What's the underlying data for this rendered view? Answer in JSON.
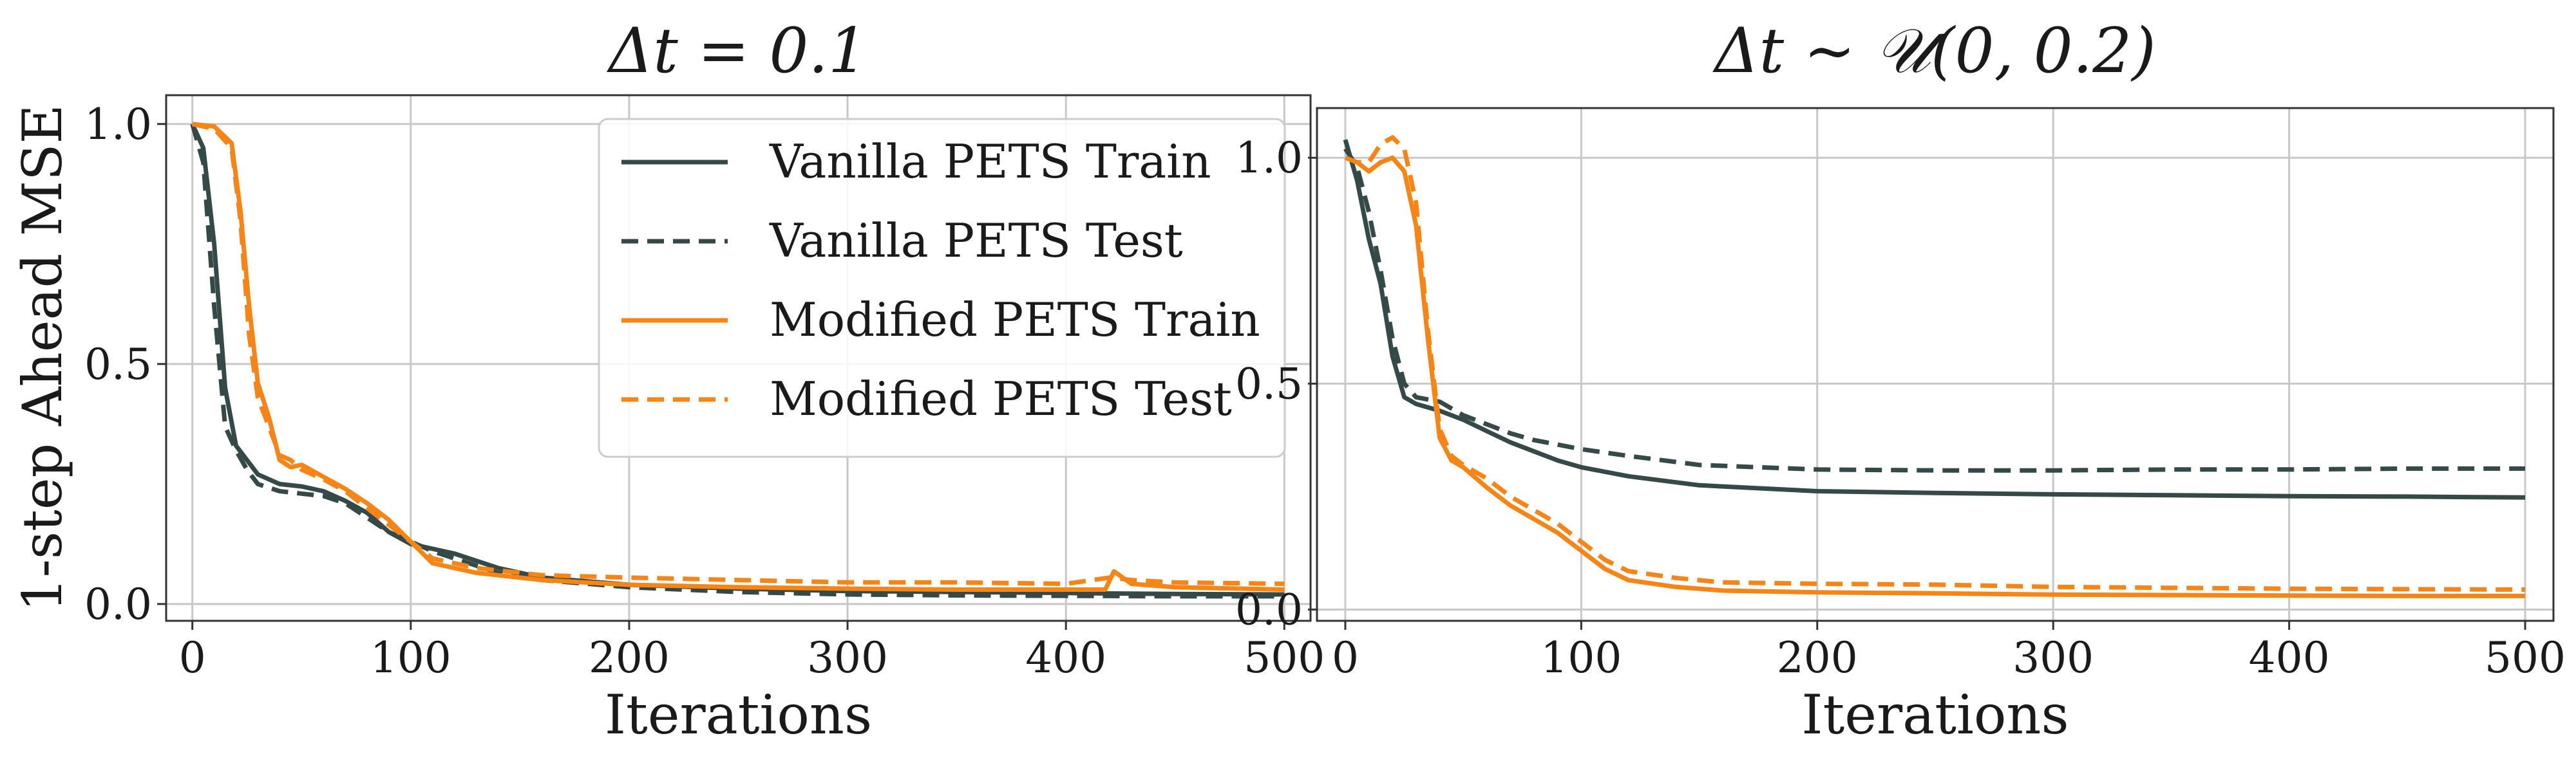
{
  "figure": {
    "ylabel": "1-step Ahead MSE"
  },
  "colors": {
    "vanilla": "#354a48",
    "modified": "#f58516",
    "grid": "#c8c8c8"
  },
  "chart_data": [
    {
      "type": "line",
      "title": "Δt = 0.1",
      "xlabel": "Iterations",
      "ylabel": "1-step Ahead MSE",
      "xlim": [
        -12,
        512
      ],
      "ylim": [
        -0.035,
        1.06
      ],
      "xticks": [
        0,
        100,
        200,
        300,
        400,
        500
      ],
      "yticks": [
        0.0,
        0.5,
        1.0
      ],
      "ytick_labels": [
        "0.0",
        "0.5",
        "1.0"
      ],
      "grid": true,
      "legend": {
        "position": "top-right",
        "entries": [
          {
            "label": "Vanilla PETS Train",
            "color": "vanilla",
            "style": "solid"
          },
          {
            "label": "Vanilla PETS Test",
            "color": "vanilla",
            "style": "dashed"
          },
          {
            "label": "Modified PETS Train",
            "color": "modified",
            "style": "solid"
          },
          {
            "label": "Modified PETS Test",
            "color": "modified",
            "style": "dashed"
          }
        ]
      },
      "series": [
        {
          "name": "Vanilla PETS Train",
          "color": "vanilla",
          "style": "solid",
          "x": [
            0,
            5,
            10,
            15,
            20,
            25,
            30,
            40,
            50,
            60,
            70,
            80,
            90,
            100,
            110,
            120,
            140,
            160,
            200,
            250,
            300,
            350,
            400,
            420,
            450,
            500
          ],
          "y": [
            1.0,
            0.95,
            0.75,
            0.45,
            0.33,
            0.3,
            0.27,
            0.25,
            0.245,
            0.235,
            0.215,
            0.19,
            0.15,
            0.125,
            0.115,
            0.105,
            0.075,
            0.055,
            0.04,
            0.032,
            0.027,
            0.025,
            0.023,
            0.022,
            0.021,
            0.02
          ]
        },
        {
          "name": "Vanilla PETS Test",
          "color": "vanilla",
          "style": "dashed",
          "x": [
            0,
            5,
            10,
            15,
            20,
            25,
            30,
            40,
            50,
            60,
            70,
            80,
            90,
            100,
            110,
            120,
            140,
            160,
            200,
            250,
            300,
            350,
            400,
            450,
            500
          ],
          "y": [
            1.0,
            0.92,
            0.62,
            0.37,
            0.32,
            0.28,
            0.25,
            0.235,
            0.23,
            0.225,
            0.21,
            0.18,
            0.15,
            0.13,
            0.11,
            0.095,
            0.065,
            0.05,
            0.035,
            0.025,
            0.02,
            0.018,
            0.017,
            0.016,
            0.016
          ]
        },
        {
          "name": "Modified PETS Train",
          "color": "modified",
          "style": "solid",
          "x": [
            0,
            10,
            18,
            22,
            26,
            30,
            35,
            40,
            45,
            50,
            60,
            70,
            80,
            90,
            100,
            110,
            130,
            160,
            200,
            250,
            300,
            350,
            400,
            418,
            422,
            430,
            450,
            500
          ],
          "y": [
            1.0,
            0.995,
            0.96,
            0.82,
            0.62,
            0.46,
            0.39,
            0.3,
            0.285,
            0.29,
            0.265,
            0.24,
            0.21,
            0.175,
            0.13,
            0.085,
            0.065,
            0.05,
            0.04,
            0.035,
            0.032,
            0.03,
            0.03,
            0.03,
            0.068,
            0.042,
            0.035,
            0.03
          ]
        },
        {
          "name": "Modified PETS Test",
          "color": "modified",
          "style": "dashed",
          "x": [
            0,
            10,
            18,
            22,
            26,
            30,
            35,
            40,
            45,
            50,
            60,
            70,
            80,
            90,
            100,
            110,
            130,
            160,
            200,
            250,
            300,
            350,
            400,
            420,
            430,
            450,
            500
          ],
          "y": [
            1.0,
            0.99,
            0.95,
            0.8,
            0.56,
            0.43,
            0.37,
            0.31,
            0.3,
            0.28,
            0.26,
            0.235,
            0.2,
            0.165,
            0.13,
            0.095,
            0.075,
            0.06,
            0.055,
            0.05,
            0.045,
            0.045,
            0.042,
            0.055,
            0.05,
            0.045,
            0.042
          ]
        }
      ]
    },
    {
      "type": "line",
      "title": "Δt ∼ 𝒰(0, 0.2)",
      "xlabel": "Iterations",
      "ylabel": "",
      "xlim": [
        -12,
        512
      ],
      "ylim": [
        -0.025,
        1.11
      ],
      "xticks": [
        0,
        100,
        200,
        300,
        400,
        500
      ],
      "yticks": [
        0.0,
        0.5,
        1.0
      ],
      "ytick_labels": [
        "0.0",
        "0.5",
        "1.0"
      ],
      "grid": true,
      "series": [
        {
          "name": "Vanilla PETS Train",
          "color": "vanilla",
          "style": "solid",
          "x": [
            0,
            5,
            10,
            15,
            20,
            25,
            30,
            40,
            50,
            60,
            70,
            80,
            90,
            100,
            120,
            150,
            200,
            250,
            300,
            350,
            400,
            450,
            500
          ],
          "y": [
            1.04,
            0.95,
            0.82,
            0.72,
            0.56,
            0.47,
            0.455,
            0.44,
            0.42,
            0.395,
            0.37,
            0.35,
            0.33,
            0.315,
            0.295,
            0.275,
            0.262,
            0.258,
            0.255,
            0.253,
            0.251,
            0.25,
            0.248
          ]
        },
        {
          "name": "Vanilla PETS Test",
          "color": "vanilla",
          "style": "dashed",
          "x": [
            0,
            5,
            10,
            15,
            20,
            25,
            30,
            40,
            50,
            60,
            70,
            80,
            90,
            100,
            120,
            150,
            200,
            250,
            300,
            350,
            400,
            450,
            500
          ],
          "y": [
            1.02,
            0.98,
            0.88,
            0.75,
            0.6,
            0.5,
            0.47,
            0.46,
            0.43,
            0.41,
            0.39,
            0.375,
            0.365,
            0.355,
            0.34,
            0.32,
            0.31,
            0.308,
            0.308,
            0.31,
            0.31,
            0.312,
            0.312
          ]
        },
        {
          "name": "Modified PETS Train",
          "color": "modified",
          "style": "solid",
          "x": [
            0,
            5,
            10,
            15,
            20,
            25,
            30,
            35,
            40,
            45,
            50,
            60,
            70,
            80,
            90,
            100,
            110,
            120,
            140,
            160,
            200,
            250,
            300,
            350,
            400,
            450,
            500
          ],
          "y": [
            1.0,
            0.99,
            0.97,
            0.99,
            1.0,
            0.97,
            0.85,
            0.6,
            0.38,
            0.33,
            0.315,
            0.27,
            0.23,
            0.2,
            0.17,
            0.13,
            0.09,
            0.065,
            0.05,
            0.042,
            0.038,
            0.036,
            0.033,
            0.032,
            0.031,
            0.03,
            0.03
          ]
        },
        {
          "name": "Modified PETS Test",
          "color": "modified",
          "style": "dashed",
          "x": [
            0,
            5,
            10,
            15,
            20,
            25,
            30,
            35,
            40,
            45,
            50,
            60,
            70,
            80,
            90,
            100,
            110,
            120,
            140,
            160,
            200,
            250,
            300,
            350,
            400,
            450,
            500
          ],
          "y": [
            1.0,
            0.99,
            0.99,
            1.03,
            1.045,
            1.02,
            0.9,
            0.62,
            0.4,
            0.34,
            0.32,
            0.29,
            0.25,
            0.22,
            0.19,
            0.15,
            0.11,
            0.085,
            0.07,
            0.06,
            0.057,
            0.055,
            0.05,
            0.048,
            0.046,
            0.045,
            0.044
          ]
        }
      ]
    }
  ]
}
